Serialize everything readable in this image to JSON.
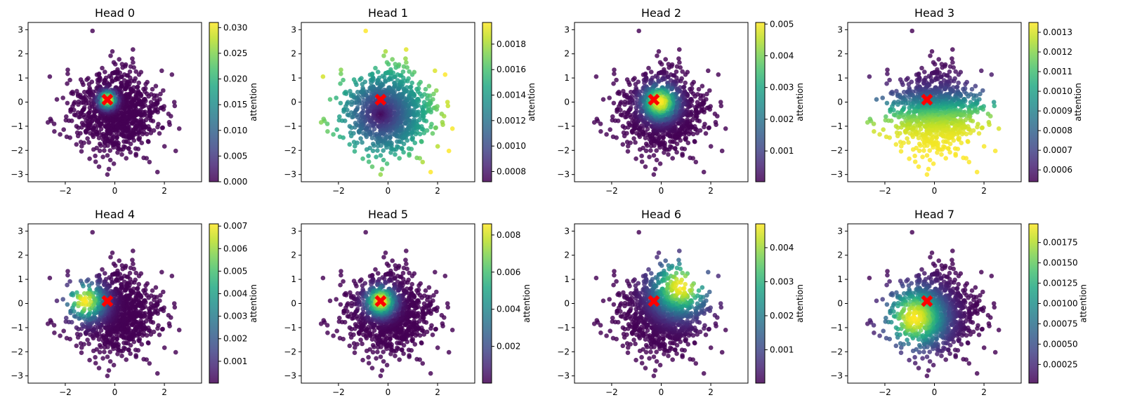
{
  "figure": {
    "name": "attention-heads-figure"
  },
  "chart_data": [
    {
      "type": "scatter",
      "title": "Head 0",
      "pattern": "center",
      "cx": -0.3,
      "cy": 0.1,
      "spread": 0.22,
      "power": 1.0,
      "cbar_min": 0.0,
      "cbar_max": 0.031,
      "cbar_ticks": [
        0.0,
        0.005,
        0.01,
        0.015,
        0.02,
        0.025,
        0.03
      ],
      "cbar_tick_labels": [
        "0.000",
        "0.005",
        "0.010",
        "0.015",
        "0.020",
        "0.025",
        "0.030"
      ],
      "cbar_label": "attention",
      "xlim": [
        -3.5,
        3.5
      ],
      "ylim": [
        -3.3,
        3.3
      ],
      "xticks": [
        -2,
        0,
        2
      ],
      "yticks": [
        -3,
        -2,
        -1,
        0,
        1,
        2,
        3
      ],
      "query": {
        "x": -0.3,
        "y": 0.1,
        "marker": "X",
        "color": "#ff0000"
      }
    },
    {
      "type": "scatter",
      "title": "Head 1",
      "pattern": "radial",
      "cx": -0.3,
      "cy": -0.5,
      "spread": 1.0,
      "power": 1.0,
      "cbar_min": 0.00072,
      "cbar_max": 0.00197,
      "cbar_ticks": [
        0.0008,
        0.001,
        0.0012,
        0.0014,
        0.0016,
        0.0018
      ],
      "cbar_tick_labels": [
        "0.0008",
        "0.0010",
        "0.0012",
        "0.0014",
        "0.0016",
        "0.0018"
      ],
      "cbar_label": "attention",
      "xlim": [
        -3.5,
        3.5
      ],
      "ylim": [
        -3.3,
        3.3
      ],
      "xticks": [
        -2,
        0,
        2
      ],
      "yticks": [
        -3,
        -2,
        -1,
        0,
        1,
        2,
        3
      ],
      "query": {
        "x": -0.3,
        "y": 0.1,
        "marker": "X",
        "color": "#ff0000"
      }
    },
    {
      "type": "scatter",
      "title": "Head 2",
      "pattern": "center",
      "cx": -0.05,
      "cy": 0.0,
      "spread": 0.45,
      "power": 1.0,
      "cbar_min": 3e-05,
      "cbar_max": 0.00505,
      "cbar_ticks": [
        0.001,
        0.002,
        0.003,
        0.004,
        0.005
      ],
      "cbar_tick_labels": [
        "0.001",
        "0.002",
        "0.003",
        "0.004",
        "0.005"
      ],
      "cbar_label": "attention",
      "xlim": [
        -3.5,
        3.5
      ],
      "ylim": [
        -3.3,
        3.3
      ],
      "xticks": [
        -2,
        0,
        2
      ],
      "yticks": [
        -3,
        -2,
        -1,
        0,
        1,
        2,
        3
      ],
      "query": {
        "x": -0.3,
        "y": 0.1,
        "marker": "X",
        "color": "#ff0000"
      }
    },
    {
      "type": "scatter",
      "title": "Head 3",
      "pattern": "direction",
      "dirx": 0.05,
      "diry": -1.0,
      "cx": -0.3,
      "cy": 0.1,
      "spread": 1.0,
      "power": 1.0,
      "cbar_min": 0.00054,
      "cbar_max": 0.00135,
      "cbar_ticks": [
        0.0006,
        0.0007,
        0.0008,
        0.0009,
        0.001,
        0.0011,
        0.0012,
        0.0013
      ],
      "cbar_tick_labels": [
        "0.0006",
        "0.0007",
        "0.0008",
        "0.0009",
        "0.0010",
        "0.0011",
        "0.0012",
        "0.0013"
      ],
      "cbar_label": "attention",
      "xlim": [
        -3.5,
        3.5
      ],
      "ylim": [
        -3.3,
        3.3
      ],
      "xticks": [
        -2,
        0,
        2
      ],
      "yticks": [
        -3,
        -2,
        -1,
        0,
        1,
        2,
        3
      ],
      "query": {
        "x": -0.3,
        "y": 0.1,
        "marker": "X",
        "color": "#ff0000"
      }
    },
    {
      "type": "scatter",
      "title": "Head 4",
      "pattern": "center",
      "cx": -1.2,
      "cy": 0.1,
      "spread": 0.5,
      "power": 1.0,
      "cbar_min": 3e-05,
      "cbar_max": 0.0071,
      "cbar_ticks": [
        0.001,
        0.002,
        0.003,
        0.004,
        0.005,
        0.006,
        0.007
      ],
      "cbar_tick_labels": [
        "0.001",
        "0.002",
        "0.003",
        "0.004",
        "0.005",
        "0.006",
        "0.007"
      ],
      "cbar_label": "attention",
      "xlim": [
        -3.5,
        3.5
      ],
      "ylim": [
        -3.3,
        3.3
      ],
      "xticks": [
        -2,
        0,
        2
      ],
      "yticks": [
        -3,
        -2,
        -1,
        0,
        1,
        2,
        3
      ],
      "query": {
        "x": -0.3,
        "y": 0.1,
        "marker": "X",
        "color": "#ff0000"
      }
    },
    {
      "type": "scatter",
      "title": "Head 5",
      "pattern": "center",
      "cx": -0.3,
      "cy": 0.1,
      "spread": 0.38,
      "power": 1.0,
      "cbar_min": 2e-05,
      "cbar_max": 0.0086,
      "cbar_ticks": [
        0.002,
        0.004,
        0.006,
        0.008
      ],
      "cbar_tick_labels": [
        "0.002",
        "0.004",
        "0.006",
        "0.008"
      ],
      "cbar_label": "attention",
      "xlim": [
        -3.5,
        3.5
      ],
      "ylim": [
        -3.3,
        3.3
      ],
      "xticks": [
        -2,
        0,
        2
      ],
      "yticks": [
        -3,
        -2,
        -1,
        0,
        1,
        2,
        3
      ],
      "query": {
        "x": -0.3,
        "y": 0.1,
        "marker": "X",
        "color": "#ff0000"
      }
    },
    {
      "type": "scatter",
      "title": "Head 6",
      "pattern": "center",
      "cx": 0.8,
      "cy": 0.7,
      "spread": 0.75,
      "power": 1.0,
      "cbar_min": 2e-05,
      "cbar_max": 0.0047,
      "cbar_ticks": [
        0.001,
        0.002,
        0.003,
        0.004
      ],
      "cbar_tick_labels": [
        "0.001",
        "0.002",
        "0.003",
        "0.004"
      ],
      "cbar_label": "attention",
      "xlim": [
        -3.5,
        3.5
      ],
      "ylim": [
        -3.3,
        3.3
      ],
      "xticks": [
        -2,
        0,
        2
      ],
      "yticks": [
        -3,
        -2,
        -1,
        0,
        1,
        2,
        3
      ],
      "query": {
        "x": -0.3,
        "y": 0.1,
        "marker": "X",
        "color": "#ff0000"
      }
    },
    {
      "type": "scatter",
      "title": "Head 7",
      "pattern": "center",
      "cx": -0.8,
      "cy": -0.6,
      "spread": 0.8,
      "power": 1.0,
      "cbar_min": 2e-05,
      "cbar_max": 0.00198,
      "cbar_ticks": [
        0.00025,
        0.0005,
        0.00075,
        0.001,
        0.00125,
        0.0015,
        0.00175
      ],
      "cbar_tick_labels": [
        "0.00025",
        "0.00050",
        "0.00075",
        "0.00100",
        "0.00125",
        "0.00150",
        "0.00175"
      ],
      "cbar_label": "attention",
      "xlim": [
        -3.5,
        3.5
      ],
      "ylim": [
        -3.3,
        3.3
      ],
      "xticks": [
        -2,
        0,
        2
      ],
      "yticks": [
        -3,
        -2,
        -1,
        0,
        1,
        2,
        3
      ],
      "query": {
        "x": -0.3,
        "y": 0.1,
        "marker": "X",
        "color": "#ff0000"
      }
    }
  ],
  "points": {
    "count": 1000,
    "seed": 12345,
    "distribution": "2D standard normal",
    "extra_points": [
      [
        -0.9,
        2.95
      ],
      [
        2.6,
        -1.1
      ],
      [
        -2.6,
        -0.7
      ],
      [
        2.4,
        0.0
      ],
      [
        -0.3,
        -3.0
      ],
      [
        1.8,
        -1.3
      ]
    ]
  },
  "colormap": "viridis",
  "colors": {
    "query_marker": "#ff0000",
    "axes": "#000000",
    "background": "#ffffff"
  }
}
